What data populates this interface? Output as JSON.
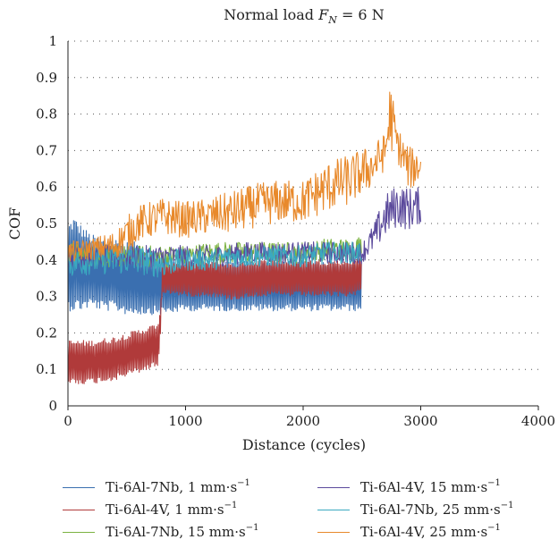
{
  "chart_data": {
    "type": "line",
    "title": "Normal load F_N = 6 N",
    "title_parts": {
      "prefix": "Normal load",
      "symbol": "F",
      "subscript": "N",
      "suffix": "= 6 N"
    },
    "xlabel": "Distance (cycles)",
    "ylabel": "COF",
    "xlim": [
      0,
      4000
    ],
    "ylim": [
      0,
      1
    ],
    "xticks": [
      0,
      1000,
      2000,
      3000,
      4000
    ],
    "yticks": [
      0,
      0.1,
      0.2,
      0.3,
      0.4,
      0.5,
      0.6,
      0.7,
      0.8,
      0.9,
      1
    ],
    "ytick_labels": [
      "0",
      "0.1",
      "0.2",
      "0.3",
      "0.4",
      "0.5",
      "0.6",
      "0.7",
      "0.8",
      "0.9",
      "1"
    ],
    "grid": true,
    "legend_position": "bottom",
    "series": [
      {
        "name": "Ti-6Al-7Nb, 1 mm·s",
        "unit_exp": "−1",
        "color": "#3a6fb0",
        "x": [
          0,
          50,
          100,
          200,
          300,
          400,
          500,
          600,
          700,
          800,
          1000,
          1200,
          1400,
          1600,
          1800,
          2000,
          2200,
          2400,
          2500
        ],
        "y_center": [
          0.38,
          0.39,
          0.38,
          0.37,
          0.36,
          0.36,
          0.35,
          0.35,
          0.34,
          0.33,
          0.33,
          0.33,
          0.33,
          0.33,
          0.33,
          0.33,
          0.33,
          0.33,
          0.33
        ],
        "y_amp": [
          0.12,
          0.13,
          0.12,
          0.1,
          0.1,
          0.1,
          0.1,
          0.1,
          0.09,
          0.08,
          0.07,
          0.07,
          0.07,
          0.07,
          0.07,
          0.07,
          0.07,
          0.07,
          0.07
        ]
      },
      {
        "name": "Ti-6Al-4V, 1 mm·s",
        "unit_exp": "−1",
        "color": "#b03a3a",
        "x": [
          0,
          100,
          200,
          300,
          400,
          500,
          600,
          700,
          770,
          790,
          800,
          1000,
          1200,
          1400,
          1600,
          1800,
          2000,
          2200,
          2400,
          2500
        ],
        "y_center": [
          0.12,
          0.12,
          0.12,
          0.125,
          0.13,
          0.14,
          0.15,
          0.16,
          0.17,
          0.24,
          0.35,
          0.35,
          0.35,
          0.34,
          0.35,
          0.35,
          0.35,
          0.35,
          0.35,
          0.36
        ],
        "y_amp": [
          0.06,
          0.06,
          0.06,
          0.06,
          0.06,
          0.06,
          0.06,
          0.06,
          0.06,
          0.03,
          0.04,
          0.05,
          0.05,
          0.05,
          0.05,
          0.05,
          0.05,
          0.05,
          0.05,
          0.05
        ]
      },
      {
        "name": "Ti-6Al-7Nb, 15 mm·s",
        "unit_exp": "−1",
        "color": "#7cb342",
        "x": [
          0,
          200,
          400,
          600,
          800,
          1000,
          1200,
          1400,
          1600,
          1800,
          2000,
          2200,
          2400,
          2500
        ],
        "y_center": [
          0.42,
          0.41,
          0.41,
          0.41,
          0.41,
          0.41,
          0.42,
          0.42,
          0.42,
          0.42,
          0.42,
          0.43,
          0.43,
          0.44
        ],
        "y_amp": [
          0.03,
          0.03,
          0.03,
          0.03,
          0.03,
          0.03,
          0.03,
          0.03,
          0.03,
          0.03,
          0.03,
          0.03,
          0.03,
          0.03
        ]
      },
      {
        "name": "Ti-6Al-4V, 15 mm·s",
        "unit_exp": "−1",
        "color": "#5b4a9c",
        "x": [
          0,
          250,
          500,
          750,
          1000,
          1250,
          1500,
          1750,
          2000,
          2250,
          2500,
          2600,
          2700,
          2800,
          2900,
          3000
        ],
        "y_center": [
          0.41,
          0.41,
          0.41,
          0.41,
          0.41,
          0.41,
          0.42,
          0.42,
          0.42,
          0.42,
          0.42,
          0.46,
          0.52,
          0.55,
          0.54,
          0.55
        ],
        "y_amp": [
          0.03,
          0.03,
          0.03,
          0.03,
          0.03,
          0.03,
          0.03,
          0.03,
          0.03,
          0.03,
          0.03,
          0.04,
          0.06,
          0.06,
          0.06,
          0.05
        ]
      },
      {
        "name": "Ti-6Al-7Nb, 25 mm·s",
        "unit_exp": "−1",
        "color": "#3aa9c0",
        "x": [
          0,
          200,
          400,
          600,
          800,
          1000,
          1200,
          1400,
          1600,
          1800,
          2000,
          2200,
          2400,
          2500
        ],
        "y_center": [
          0.39,
          0.4,
          0.4,
          0.4,
          0.39,
          0.4,
          0.4,
          0.41,
          0.41,
          0.41,
          0.41,
          0.42,
          0.42,
          0.42
        ],
        "y_amp": [
          0.04,
          0.04,
          0.04,
          0.04,
          0.04,
          0.03,
          0.03,
          0.03,
          0.03,
          0.03,
          0.03,
          0.03,
          0.03,
          0.03
        ]
      },
      {
        "name": "Ti-6Al-4V, 25 mm·s",
        "unit_exp": "−1",
        "color": "#e8892b",
        "x": [
          0,
          200,
          400,
          500,
          600,
          800,
          1000,
          1200,
          1400,
          1600,
          1800,
          2000,
          2200,
          2400,
          2600,
          2700,
          2740,
          2800,
          2900,
          3000
        ],
        "y_center": [
          0.42,
          0.43,
          0.44,
          0.47,
          0.5,
          0.52,
          0.51,
          0.52,
          0.53,
          0.55,
          0.56,
          0.56,
          0.6,
          0.62,
          0.66,
          0.7,
          0.8,
          0.72,
          0.65,
          0.66
        ],
        "y_amp": [
          0.03,
          0.03,
          0.04,
          0.05,
          0.05,
          0.05,
          0.05,
          0.05,
          0.06,
          0.06,
          0.06,
          0.06,
          0.07,
          0.07,
          0.06,
          0.05,
          0.1,
          0.05,
          0.06,
          0.05
        ]
      }
    ]
  }
}
